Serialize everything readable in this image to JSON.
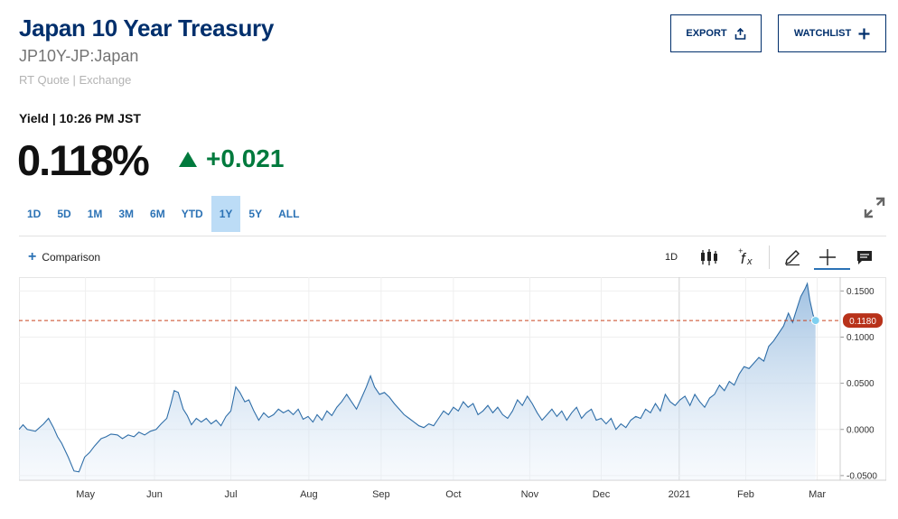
{
  "header": {
    "title": "Japan 10 Year Treasury",
    "symbol": "JP10Y-JP:Japan",
    "exchange": "RT Quote | Exchange",
    "export_label": "EXPORT",
    "watchlist_label": "WATCHLIST"
  },
  "quote": {
    "yield_line": "Yield | 10:26 PM JST",
    "price": "0.118%",
    "change": "+0.021",
    "up_color": "#007a3d"
  },
  "ranges": [
    {
      "label": "1D"
    },
    {
      "label": "5D"
    },
    {
      "label": "1M"
    },
    {
      "label": "3M"
    },
    {
      "label": "6M"
    },
    {
      "label": "YTD"
    },
    {
      "label": "1Y",
      "active": true
    },
    {
      "label": "5Y"
    },
    {
      "label": "ALL"
    }
  ],
  "toolbar": {
    "comparison_label": "Comparison",
    "interval_label": "1D",
    "icons": [
      "candlestick-icon",
      "studies-fx-icon",
      "pencil-icon",
      "crosshair-icon",
      "comment-icon"
    ]
  },
  "chart_data": {
    "type": "area",
    "x_ticks": [
      "May",
      "Jun",
      "Jul",
      "Aug",
      "Sep",
      "Oct",
      "Nov",
      "Dec",
      "2021",
      "Feb",
      "Mar"
    ],
    "y_ticks": [
      "0.1500",
      "0.1000",
      "0.0500",
      "0.0000",
      "-0.0500"
    ],
    "ylim": [
      -0.055,
      0.165
    ],
    "current_value_label": "0.1180",
    "current_value": 0.118,
    "line_color": "#2f6ea8",
    "ref_line_color": "#c9431e",
    "grid": true,
    "x_range": [
      0,
      100
    ],
    "series": [
      {
        "values": [
          [
            0.0,
            0.0
          ],
          [
            0.5,
            0.005
          ],
          [
            1.0,
            0.0
          ],
          [
            2.0,
            -0.002
          ],
          [
            3.0,
            0.006
          ],
          [
            3.6,
            0.012
          ],
          [
            4.2,
            0.002
          ],
          [
            4.7,
            -0.008
          ],
          [
            5.2,
            -0.015
          ],
          [
            6.0,
            -0.03
          ],
          [
            6.7,
            -0.045
          ],
          [
            7.3,
            -0.046
          ],
          [
            8.0,
            -0.03
          ],
          [
            8.6,
            -0.025
          ],
          [
            9.2,
            -0.018
          ],
          [
            10.0,
            -0.01
          ],
          [
            10.6,
            -0.008
          ],
          [
            11.2,
            -0.005
          ],
          [
            12.0,
            -0.006
          ],
          [
            12.6,
            -0.01
          ],
          [
            13.3,
            -0.006
          ],
          [
            14.0,
            -0.008
          ],
          [
            14.6,
            -0.003
          ],
          [
            15.3,
            -0.006
          ],
          [
            16.0,
            -0.002
          ],
          [
            16.7,
            0.0
          ],
          [
            17.3,
            0.006
          ],
          [
            18.0,
            0.012
          ],
          [
            18.5,
            0.028
          ],
          [
            18.9,
            0.042
          ],
          [
            19.4,
            0.04
          ],
          [
            20.0,
            0.022
          ],
          [
            20.5,
            0.015
          ],
          [
            21.0,
            0.005
          ],
          [
            21.6,
            0.012
          ],
          [
            22.2,
            0.008
          ],
          [
            22.8,
            0.012
          ],
          [
            23.4,
            0.006
          ],
          [
            24.0,
            0.01
          ],
          [
            24.6,
            0.004
          ],
          [
            25.2,
            0.014
          ],
          [
            25.8,
            0.02
          ],
          [
            26.4,
            0.046
          ],
          [
            26.9,
            0.04
          ],
          [
            27.5,
            0.03
          ],
          [
            28.0,
            0.032
          ],
          [
            28.6,
            0.02
          ],
          [
            29.2,
            0.01
          ],
          [
            29.8,
            0.018
          ],
          [
            30.4,
            0.013
          ],
          [
            31.0,
            0.016
          ],
          [
            31.6,
            0.022
          ],
          [
            32.2,
            0.018
          ],
          [
            32.8,
            0.021
          ],
          [
            33.4,
            0.016
          ],
          [
            34.0,
            0.022
          ],
          [
            34.6,
            0.011
          ],
          [
            35.2,
            0.014
          ],
          [
            35.8,
            0.008
          ],
          [
            36.3,
            0.016
          ],
          [
            36.9,
            0.01
          ],
          [
            37.5,
            0.02
          ],
          [
            38.1,
            0.015
          ],
          [
            38.7,
            0.024
          ],
          [
            39.3,
            0.03
          ],
          [
            39.9,
            0.038
          ],
          [
            40.5,
            0.03
          ],
          [
            41.1,
            0.022
          ],
          [
            41.7,
            0.034
          ],
          [
            42.3,
            0.046
          ],
          [
            42.8,
            0.058
          ],
          [
            43.3,
            0.046
          ],
          [
            43.9,
            0.038
          ],
          [
            44.5,
            0.04
          ],
          [
            45.1,
            0.035
          ],
          [
            45.7,
            0.028
          ],
          [
            46.3,
            0.022
          ],
          [
            46.9,
            0.016
          ],
          [
            47.5,
            0.012
          ],
          [
            48.1,
            0.008
          ],
          [
            48.7,
            0.004
          ],
          [
            49.3,
            0.002
          ],
          [
            49.9,
            0.006
          ],
          [
            50.5,
            0.004
          ],
          [
            51.1,
            0.012
          ],
          [
            51.7,
            0.02
          ],
          [
            52.3,
            0.016
          ],
          [
            52.9,
            0.024
          ],
          [
            53.5,
            0.02
          ],
          [
            54.1,
            0.03
          ],
          [
            54.7,
            0.024
          ],
          [
            55.3,
            0.028
          ],
          [
            55.9,
            0.016
          ],
          [
            56.5,
            0.02
          ],
          [
            57.1,
            0.026
          ],
          [
            57.7,
            0.018
          ],
          [
            58.3,
            0.024
          ],
          [
            58.9,
            0.016
          ],
          [
            59.5,
            0.012
          ],
          [
            60.1,
            0.02
          ],
          [
            60.7,
            0.032
          ],
          [
            61.3,
            0.026
          ],
          [
            61.9,
            0.036
          ],
          [
            62.5,
            0.028
          ],
          [
            63.1,
            0.018
          ],
          [
            63.7,
            0.01
          ],
          [
            64.3,
            0.016
          ],
          [
            64.9,
            0.022
          ],
          [
            65.5,
            0.014
          ],
          [
            66.1,
            0.02
          ],
          [
            66.7,
            0.01
          ],
          [
            67.3,
            0.018
          ],
          [
            67.9,
            0.024
          ],
          [
            68.5,
            0.012
          ],
          [
            69.1,
            0.018
          ],
          [
            69.7,
            0.022
          ],
          [
            70.3,
            0.01
          ],
          [
            70.9,
            0.012
          ],
          [
            71.5,
            0.006
          ],
          [
            72.1,
            0.012
          ],
          [
            72.7,
            0.0
          ],
          [
            73.3,
            0.006
          ],
          [
            73.9,
            0.002
          ],
          [
            74.5,
            0.01
          ],
          [
            75.1,
            0.014
          ],
          [
            75.7,
            0.012
          ],
          [
            76.3,
            0.022
          ],
          [
            76.9,
            0.018
          ],
          [
            77.5,
            0.028
          ],
          [
            78.1,
            0.02
          ],
          [
            78.7,
            0.038
          ],
          [
            79.3,
            0.03
          ],
          [
            79.9,
            0.026
          ],
          [
            80.5,
            0.032
          ],
          [
            81.1,
            0.036
          ],
          [
            81.7,
            0.026
          ],
          [
            82.3,
            0.038
          ],
          [
            82.9,
            0.03
          ],
          [
            83.5,
            0.024
          ],
          [
            84.1,
            0.034
          ],
          [
            84.7,
            0.038
          ],
          [
            85.3,
            0.048
          ],
          [
            85.9,
            0.042
          ],
          [
            86.5,
            0.052
          ],
          [
            87.1,
            0.048
          ],
          [
            87.7,
            0.06
          ],
          [
            88.3,
            0.068
          ],
          [
            88.9,
            0.066
          ],
          [
            89.5,
            0.072
          ],
          [
            90.1,
            0.078
          ],
          [
            90.7,
            0.074
          ],
          [
            91.3,
            0.09
          ],
          [
            91.9,
            0.096
          ],
          [
            92.5,
            0.104
          ],
          [
            93.1,
            0.112
          ],
          [
            93.7,
            0.126
          ],
          [
            94.2,
            0.116
          ],
          [
            94.7,
            0.13
          ],
          [
            95.2,
            0.144
          ],
          [
            95.7,
            0.152
          ],
          [
            96.0,
            0.158
          ],
          [
            96.3,
            0.14
          ],
          [
            96.7,
            0.124
          ],
          [
            97.0,
            0.118
          ]
        ]
      }
    ]
  }
}
